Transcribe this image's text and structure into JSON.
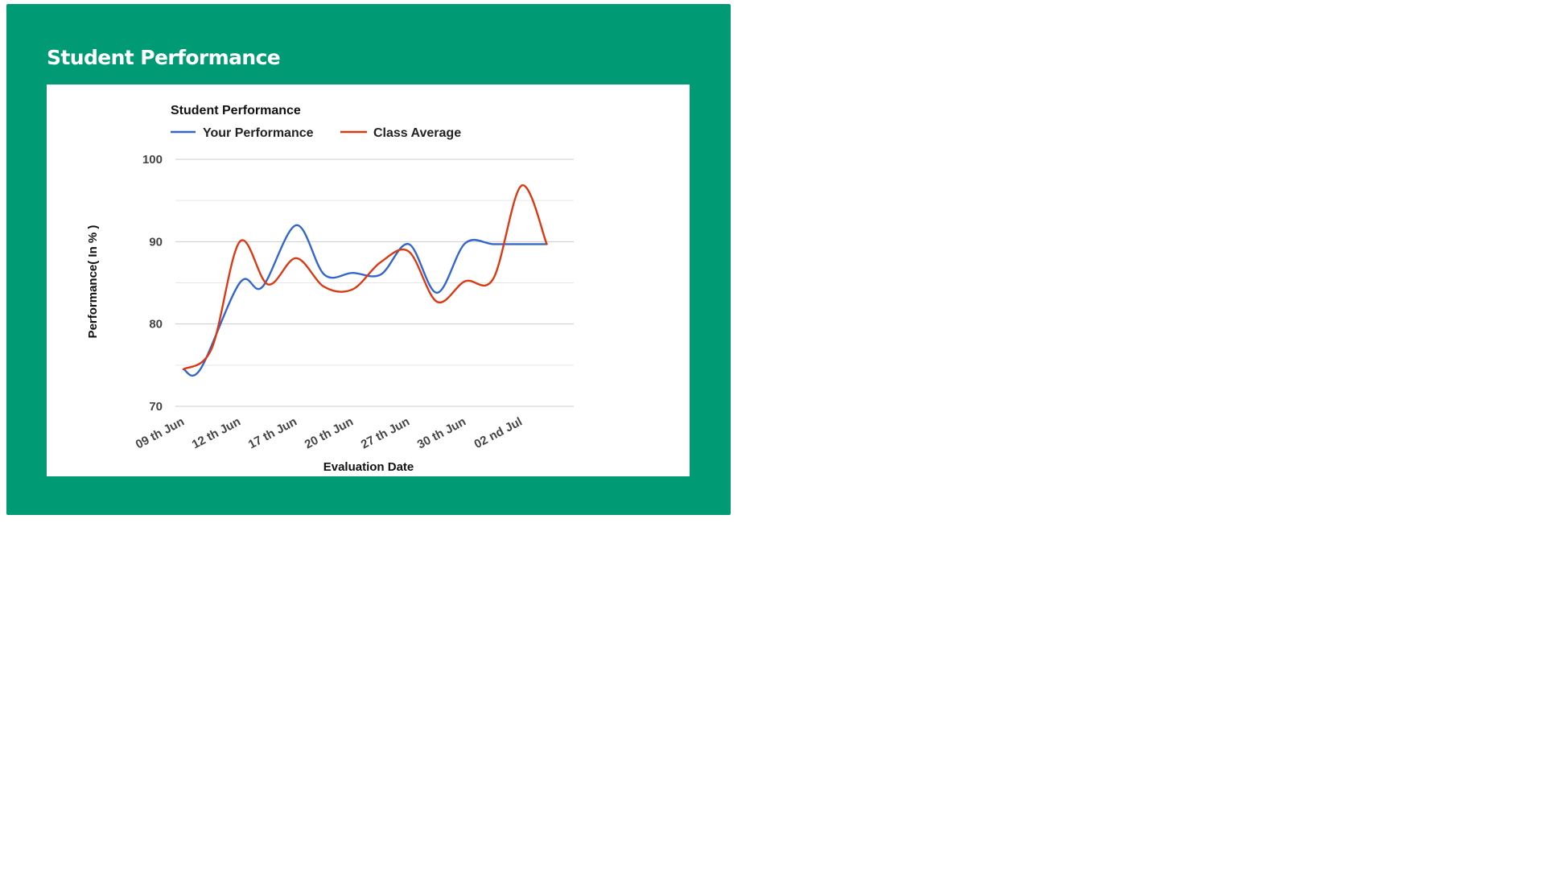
{
  "page": {
    "title": "Student Performance",
    "panel_color": "#009b74"
  },
  "chart_data": {
    "type": "line",
    "title": "Student Performance",
    "xlabel": "Evaluation Date",
    "ylabel": "Performance( In % )",
    "ylim": [
      70,
      100
    ],
    "yticks": [
      70,
      80,
      90,
      100
    ],
    "grid": true,
    "legend_position": "top",
    "categories": [
      "09 th Jun",
      "12 th Jun",
      "17 th Jun",
      "20 th Jun",
      "27 th Jun",
      "30 th Jun",
      "02 nd Jul"
    ],
    "x_tick_labels": [
      "09 th Jun",
      "12 th Jun",
      "17 th Jun",
      "20 th Jun",
      "27 th Jun",
      "30 th Jun",
      "02 nd Jul"
    ],
    "x_positions": [
      0,
      1,
      2,
      3,
      4,
      5,
      6,
      6.45
    ],
    "series": [
      {
        "name": "Your Performance",
        "color": "#3366cc",
        "x": [
          0,
          0.3,
          1,
          1.4,
          2,
          2.5,
          3,
          3.5,
          4,
          4.5,
          5,
          5.5,
          6,
          6.45
        ],
        "values": [
          74.5,
          74.5,
          85,
          84.5,
          92,
          86,
          86.2,
          86,
          89.7,
          83.8,
          89.8,
          89.7,
          89.7,
          89.7
        ]
      },
      {
        "name": "Class Average",
        "color": "#dc3912",
        "x": [
          0,
          0.5,
          1,
          1.5,
          2,
          2.5,
          3,
          3.5,
          4,
          4.5,
          5,
          5.5,
          6,
          6.45
        ],
        "values": [
          74.5,
          77,
          90,
          84.8,
          88,
          84.5,
          84.2,
          87.5,
          88.8,
          82.7,
          85.2,
          85.5,
          96.8,
          89.7
        ]
      }
    ]
  }
}
